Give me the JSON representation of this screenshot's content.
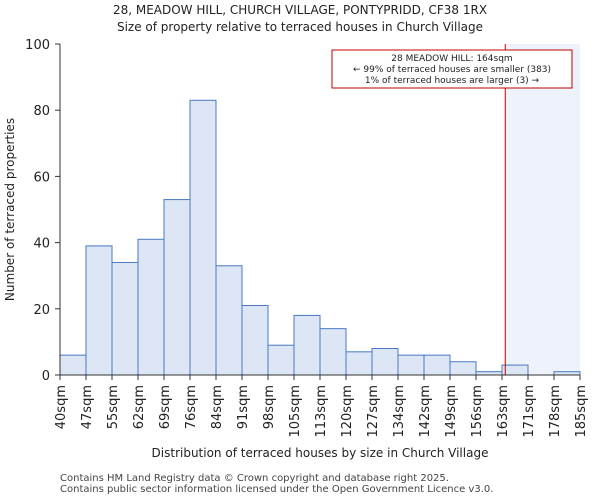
{
  "chart_data": {
    "type": "histogram",
    "title_line1": "28, MEADOW HILL, CHURCH VILLAGE, PONTYPRIDD, CF38 1RX",
    "title_line2": "Size of property relative to terraced houses in Church Village",
    "xlabel": "Distribution of terraced houses by size in Church Village",
    "ylabel": "Number of terraced properties",
    "categories": [
      "40sqm",
      "47sqm",
      "55sqm",
      "62sqm",
      "69sqm",
      "76sqm",
      "84sqm",
      "91sqm",
      "98sqm",
      "105sqm",
      "113sqm",
      "120sqm",
      "127sqm",
      "134sqm",
      "142sqm",
      "149sqm",
      "156sqm",
      "163sqm",
      "171sqm",
      "178sqm",
      "185sqm"
    ],
    "values": [
      6,
      39,
      34,
      41,
      53,
      83,
      33,
      21,
      9,
      18,
      14,
      7,
      8,
      6,
      6,
      4,
      1,
      3,
      0,
      1
    ],
    "ylim": [
      0,
      100
    ],
    "yticks": [
      0,
      20,
      40,
      60,
      80,
      100
    ],
    "marker_value_sqm": 164,
    "annotation": {
      "line1": "28 MEADOW HILL: 164sqm",
      "line2": "← 99% of terraced houses are smaller (383)",
      "line3": "1% of terraced houses are larger (3) →"
    },
    "colors": {
      "bar_fill": "#dce6f4",
      "bar_stroke": "#4a78c2",
      "marker": "#c00000",
      "highlight": "#eef3fb"
    }
  },
  "footer": {
    "line1": "Contains HM Land Registry data © Crown copyright and database right 2025.",
    "line2": "Contains public sector information licensed under the Open Government Licence v3.0."
  }
}
